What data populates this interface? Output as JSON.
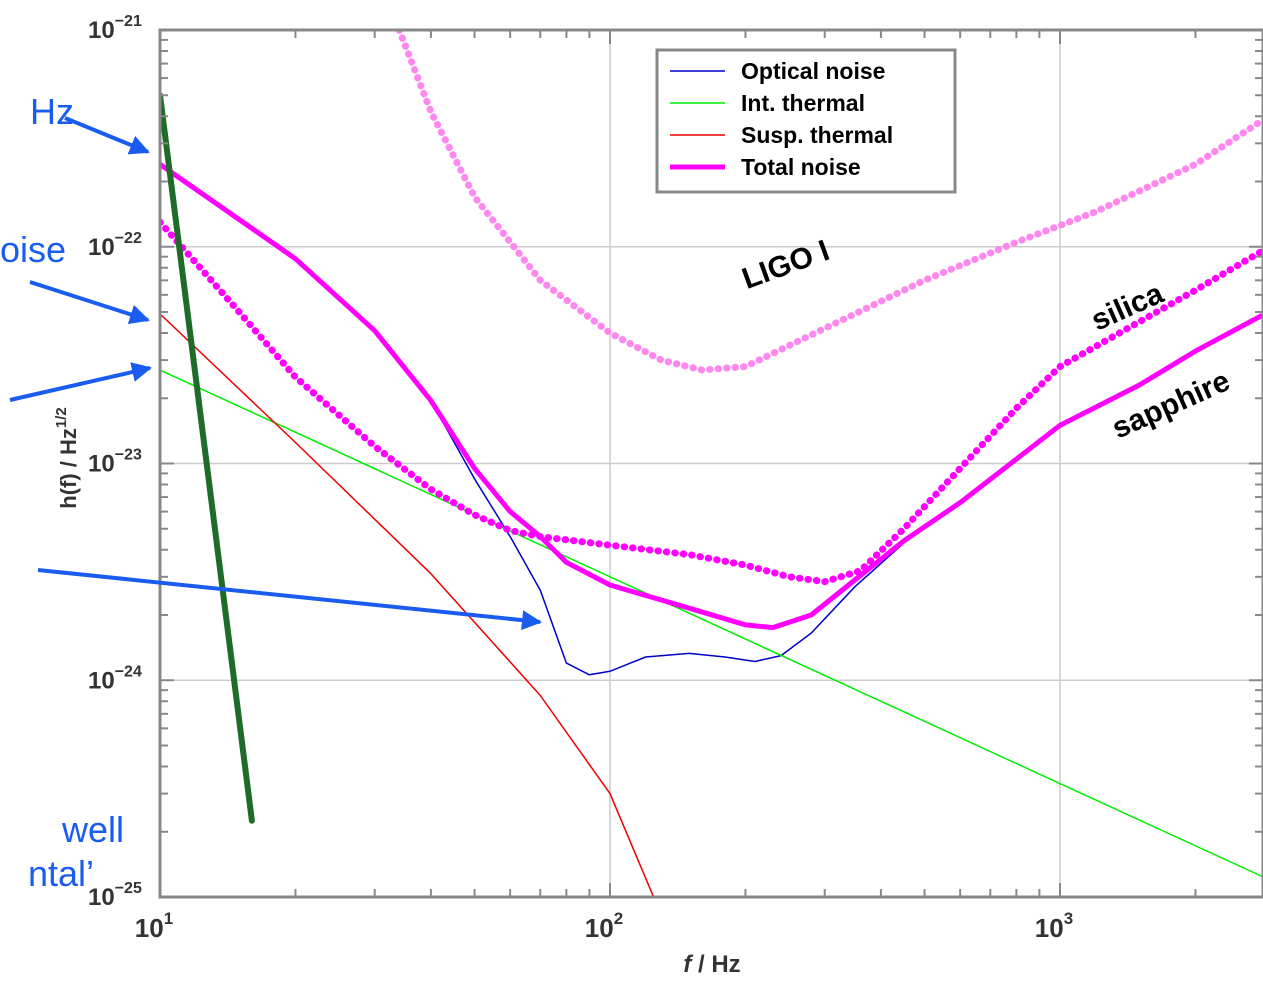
{
  "chart_data": {
    "type": "line",
    "xscale": "log",
    "yscale": "log",
    "xlim": [
      10,
      2800
    ],
    "ylim": [
      1e-25,
      1e-21
    ],
    "xlabel": "f / Hz",
    "ylabel": "h(f) / Hz",
    "ylabel_exponent": "1/2",
    "grid": true,
    "x_ticks": [
      {
        "value": 10,
        "base": "10",
        "exp": "1"
      },
      {
        "value": 100,
        "base": "10",
        "exp": "2"
      },
      {
        "value": 1000,
        "base": "10",
        "exp": "3"
      }
    ],
    "y_ticks": [
      {
        "value": 1e-21,
        "base": "10",
        "exp": "−21"
      },
      {
        "value": 1e-22,
        "base": "10",
        "exp": "−22"
      },
      {
        "value": 1e-23,
        "base": "10",
        "exp": "−23"
      },
      {
        "value": 1e-24,
        "base": "10",
        "exp": "−24"
      },
      {
        "value": 1e-25,
        "base": "10",
        "exp": "−25"
      }
    ],
    "legend_position": "top-right",
    "series": [
      {
        "name": "Optical noise",
        "color": "#0000cc",
        "style": "solid",
        "width": 1.5,
        "points": [
          [
            10,
            2.4e-22
          ],
          [
            20,
            8.8e-23
          ],
          [
            30,
            4.1e-23
          ],
          [
            40,
            1.95e-23
          ],
          [
            50,
            8.5e-24
          ],
          [
            60,
            4.6e-24
          ],
          [
            70,
            2.6e-24
          ],
          [
            80,
            1.2e-24
          ],
          [
            90,
            1.06e-24
          ],
          [
            100,
            1.1e-24
          ],
          [
            120,
            1.28e-24
          ],
          [
            150,
            1.33e-24
          ],
          [
            180,
            1.28e-24
          ],
          [
            210,
            1.22e-24
          ],
          [
            240,
            1.3e-24
          ],
          [
            280,
            1.65e-24
          ],
          [
            350,
            2.7e-24
          ],
          [
            450,
            4.3e-24
          ],
          [
            600,
            6.5e-24
          ],
          [
            1000,
            1.5e-23
          ],
          [
            1500,
            2.3e-23
          ],
          [
            2000,
            3.3e-23
          ],
          [
            2800,
            4.8e-23
          ]
        ]
      },
      {
        "name": "Int. thermal",
        "color": "#00ee00",
        "style": "solid",
        "width": 1.5,
        "points": [
          [
            10,
            2.7e-23
          ],
          [
            2800,
            1.25e-25
          ]
        ]
      },
      {
        "name": "Susp. thermal",
        "color": "#ee0000",
        "style": "solid",
        "width": 1.5,
        "points": [
          [
            10,
            4.9e-23
          ],
          [
            20,
            1.25e-23
          ],
          [
            40,
            3.1e-24
          ],
          [
            70,
            8.5e-25
          ],
          [
            100,
            3e-25
          ],
          [
            125,
            1e-25
          ]
        ]
      },
      {
        "name": "Total noise",
        "color": "#ff00ff",
        "style": "solid",
        "width": 5,
        "points": [
          [
            10,
            2.4e-22
          ],
          [
            20,
            8.8e-23
          ],
          [
            30,
            4.1e-23
          ],
          [
            40,
            1.95e-23
          ],
          [
            50,
            9.5e-24
          ],
          [
            60,
            6e-24
          ],
          [
            70,
            4.6e-24
          ],
          [
            80,
            3.5e-24
          ],
          [
            100,
            2.75e-24
          ],
          [
            150,
            2.15e-24
          ],
          [
            200,
            1.8e-24
          ],
          [
            230,
            1.75e-24
          ],
          [
            280,
            2e-24
          ],
          [
            350,
            2.9e-24
          ],
          [
            450,
            4.4e-24
          ],
          [
            600,
            6.6e-24
          ],
          [
            1000,
            1.5e-23
          ],
          [
            1500,
            2.3e-23
          ],
          [
            2000,
            3.3e-23
          ],
          [
            2800,
            4.8e-23
          ]
        ]
      },
      {
        "name": "",
        "color": "#ff00ff",
        "style": "dotted",
        "width": 3,
        "points": [
          [
            10,
            1.3e-22
          ],
          [
            15,
            5e-23
          ],
          [
            20,
            2.5e-23
          ],
          [
            30,
            1.2e-23
          ],
          [
            40,
            7.6e-24
          ],
          [
            50,
            5.8e-24
          ],
          [
            60,
            4.9e-24
          ],
          [
            70,
            4.6e-24
          ],
          [
            100,
            4.2e-24
          ],
          [
            150,
            3.8e-24
          ],
          [
            200,
            3.4e-24
          ],
          [
            250,
            3e-24
          ],
          [
            300,
            2.85e-24
          ],
          [
            360,
            3.2e-24
          ],
          [
            450,
            5e-24
          ],
          [
            600,
            9.5e-24
          ],
          [
            800,
            1.8e-23
          ],
          [
            1000,
            2.8e-23
          ],
          [
            1500,
            4.5e-23
          ],
          [
            2000,
            6.3e-23
          ],
          [
            2800,
            9.5e-23
          ]
        ]
      },
      {
        "name": "",
        "color": "#ff88ee",
        "style": "dotted",
        "width": 3,
        "points": [
          [
            34,
            1e-21
          ],
          [
            40,
            4.2e-22
          ],
          [
            50,
            1.7e-22
          ],
          [
            70,
            7e-23
          ],
          [
            100,
            4e-23
          ],
          [
            130,
            3e-23
          ],
          [
            160,
            2.7e-23
          ],
          [
            200,
            2.8e-23
          ],
          [
            300,
            4.2e-23
          ],
          [
            500,
            7e-23
          ],
          [
            800,
            1.05e-22
          ],
          [
            1200,
            1.45e-22
          ],
          [
            2000,
            2.4e-22
          ],
          [
            2800,
            3.8e-22
          ]
        ]
      },
      {
        "name": "",
        "color": "#1f6b28",
        "style": "solid",
        "width": 6,
        "points": [
          [
            10,
            5e-22
          ],
          [
            16,
            2.25e-25
          ]
        ]
      }
    ],
    "annotations": [
      {
        "text": "LIGO I",
        "x": 250,
        "y": 7.5e-23,
        "rotate": -20
      },
      {
        "text": "silica",
        "x": 1440,
        "y": 4.8e-23,
        "rotate": -24
      },
      {
        "text": "sapphire",
        "x": 1800,
        "y": 1.7e-23,
        "rotate": -24
      }
    ],
    "side_labels": [
      "Hz",
      "oise",
      "well",
      "ntal’"
    ]
  }
}
